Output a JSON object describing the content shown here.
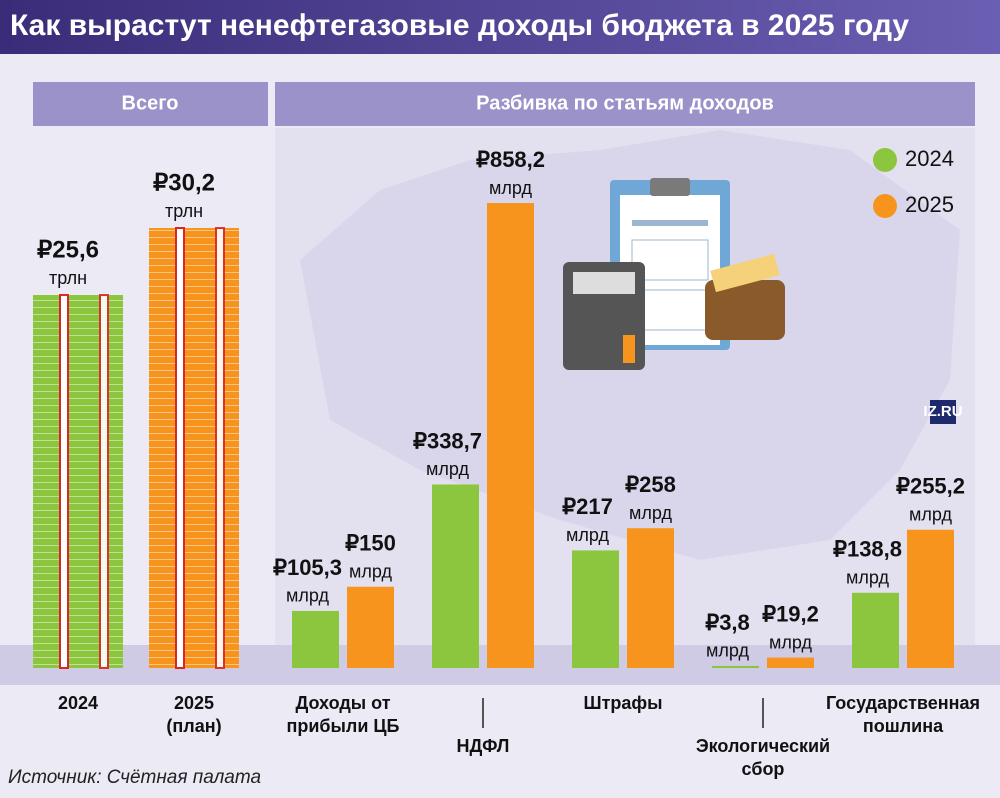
{
  "title": "Как вырастут ненефтегазовые доходы бюджета в 2025 году",
  "source": "Источник: Счётная палата",
  "logo": "IZ.RU",
  "chart_data": [
    {
      "type": "stack",
      "title": "Всего",
      "categories": [
        "2024",
        "2025 (план)"
      ],
      "values": [
        25.6,
        30.2
      ],
      "value_labels": [
        "₽25,6",
        "₽30,2"
      ],
      "unit": "трлн",
      "colors": [
        "#8cc63f",
        "#f7941d"
      ]
    },
    {
      "type": "bar",
      "title": "Разбивка по статьям доходов",
      "categories": [
        "Доходы от прибыли ЦБ",
        "НДФЛ",
        "Штрафы",
        "Экологический сбор",
        "Государственная пошлина"
      ],
      "unit": "млрд",
      "legend": "top-right",
      "series": [
        {
          "name": "2024",
          "color": "#8cc63f",
          "values": [
            105.3,
            338.7,
            217,
            3.8,
            138.8
          ],
          "value_labels": [
            "₽105,3",
            "₽338,7",
            "₽217",
            "₽3,8",
            "₽138,8"
          ]
        },
        {
          "name": "2025",
          "color": "#f7941d",
          "values": [
            150,
            858.2,
            258,
            19.2,
            255.2
          ],
          "value_labels": [
            "₽150",
            "₽858,2",
            "₽258",
            "₽19,2",
            "₽255,2"
          ]
        }
      ]
    }
  ]
}
